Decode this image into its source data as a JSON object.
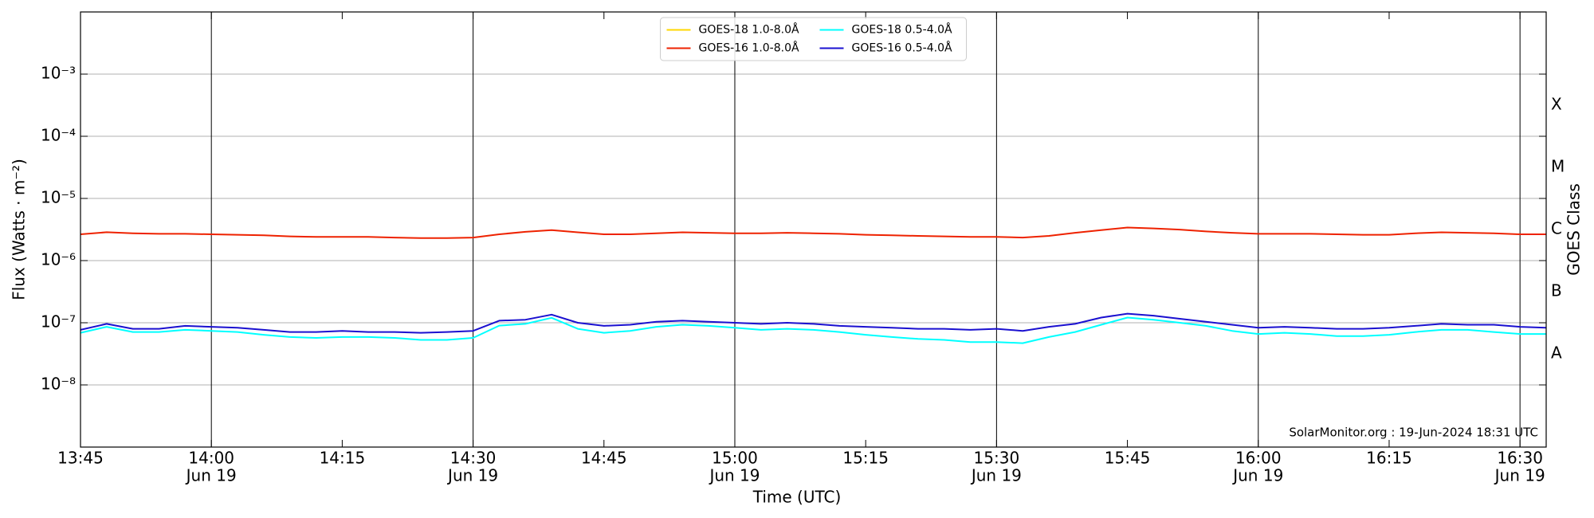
{
  "chart_data": {
    "type": "line",
    "xlabel": "Time (UTC)",
    "ylabel": "Flux (Watts · m⁻²)",
    "y2label": "GOES Class",
    "annotation": "SolarMonitor.org : 19-Jun-2024 18:31 UTC",
    "log_y": true,
    "grid": true,
    "legend": "upper center",
    "xlim": [
      "Jun 19 13:45",
      "Jun 19 16:33"
    ],
    "ylim": [
      1e-09,
      0.01
    ],
    "y2lim": [
      1e-09,
      0.01
    ],
    "xticks": [
      {
        "value": "Jun 19 13:45",
        "label": "13:45"
      },
      {
        "value": "Jun 19 14:00",
        "label": "14:00",
        "date": "Jun 19"
      },
      {
        "value": "Jun 19 14:15",
        "label": "14:15"
      },
      {
        "value": "Jun 19 14:30",
        "label": "14:30",
        "date": "Jun 19"
      },
      {
        "value": "Jun 19 14:45",
        "label": "14:45"
      },
      {
        "value": "Jun 19 15:00",
        "label": "15:00",
        "date": "Jun 19"
      },
      {
        "value": "Jun 19 15:15",
        "label": "15:15"
      },
      {
        "value": "Jun 19 15:30",
        "label": "15:30",
        "date": "Jun 19"
      },
      {
        "value": "Jun 19 15:45",
        "label": "15:45"
      },
      {
        "value": "Jun 19 16:00",
        "label": "16:00",
        "date": "Jun 19"
      },
      {
        "value": "Jun 19 16:15",
        "label": "16:15"
      },
      {
        "value": "Jun 19 16:30",
        "label": "16:30",
        "date": "Jun 19"
      }
    ],
    "yticks": [
      {
        "value": 1e-08,
        "label": "10⁻⁸"
      },
      {
        "value": 1e-07,
        "label": "10⁻⁷"
      },
      {
        "value": 1e-06,
        "label": "10⁻⁶"
      },
      {
        "value": 1e-05,
        "label": "10⁻⁵"
      },
      {
        "value": 0.0001,
        "label": "10⁻⁴"
      },
      {
        "value": 0.001,
        "label": "10⁻³"
      }
    ],
    "y2ticks": [
      {
        "value": 3.16e-08,
        "label": "A"
      },
      {
        "value": 3.16e-07,
        "label": "B"
      },
      {
        "value": 3.16e-06,
        "label": "C"
      },
      {
        "value": 3.16e-05,
        "label": "M"
      },
      {
        "value": 0.000316,
        "label": "X"
      }
    ],
    "x": [
      "Jun 19 13:45",
      "Jun 19 13:48",
      "Jun 19 13:51",
      "Jun 19 13:54",
      "Jun 19 13:57",
      "Jun 19 14:00",
      "Jun 19 14:03",
      "Jun 19 14:06",
      "Jun 19 14:09",
      "Jun 19 14:12",
      "Jun 19 14:15",
      "Jun 19 14:18",
      "Jun 19 14:21",
      "Jun 19 14:24",
      "Jun 19 14:27",
      "Jun 19 14:30",
      "Jun 19 14:33",
      "Jun 19 14:36",
      "Jun 19 14:39",
      "Jun 19 14:42",
      "Jun 19 14:45",
      "Jun 19 14:48",
      "Jun 19 14:51",
      "Jun 19 14:54",
      "Jun 19 14:57",
      "Jun 19 15:00",
      "Jun 19 15:03",
      "Jun 19 15:06",
      "Jun 19 15:09",
      "Jun 19 15:12",
      "Jun 19 15:15",
      "Jun 19 15:18",
      "Jun 19 15:21",
      "Jun 19 15:24",
      "Jun 19 15:27",
      "Jun 19 15:30",
      "Jun 19 15:33",
      "Jun 19 15:36",
      "Jun 19 15:39",
      "Jun 19 15:42",
      "Jun 19 15:45",
      "Jun 19 15:48",
      "Jun 19 15:51",
      "Jun 19 15:54",
      "Jun 19 15:57",
      "Jun 19 16:00",
      "Jun 19 16:03",
      "Jun 19 16:06",
      "Jun 19 16:09",
      "Jun 19 16:12",
      "Jun 19 16:15",
      "Jun 19 16:18",
      "Jun 19 16:21",
      "Jun 19 16:24",
      "Jun 19 16:27",
      "Jun 19 16:30",
      "Jun 19 16:33"
    ],
    "series": [
      {
        "name": "GOES-18 1.0-8.0Å",
        "color": "#ffd700",
        "values": [
          null,
          null,
          null,
          null,
          null,
          null,
          null,
          null,
          null,
          null,
          null,
          null,
          null,
          null,
          null,
          null,
          null,
          null,
          null,
          null,
          null,
          null,
          null,
          null,
          null,
          null,
          null,
          null,
          null,
          null,
          null,
          null,
          null,
          null,
          null,
          null,
          null,
          null,
          null,
          null,
          null,
          null,
          null,
          null,
          null,
          null,
          null,
          null,
          null,
          null,
          null,
          null,
          null,
          null,
          null,
          null,
          null
        ]
      },
      {
        "name": "GOES-16 1.0-8.0Å",
        "color": "#ee2200",
        "values": [
          2.65e-06,
          2.86e-06,
          2.75e-06,
          2.7e-06,
          2.7e-06,
          2.65e-06,
          2.6e-06,
          2.55e-06,
          2.45e-06,
          2.4e-06,
          2.4e-06,
          2.4e-06,
          2.35e-06,
          2.3e-06,
          2.3e-06,
          2.35e-06,
          2.65e-06,
          2.9e-06,
          3.1e-06,
          2.85e-06,
          2.65e-06,
          2.65e-06,
          2.75e-06,
          2.85e-06,
          2.8e-06,
          2.75e-06,
          2.75e-06,
          2.8e-06,
          2.75e-06,
          2.7e-06,
          2.6e-06,
          2.55e-06,
          2.5e-06,
          2.45e-06,
          2.4e-06,
          2.4e-06,
          2.35e-06,
          2.5e-06,
          2.8e-06,
          3.1e-06,
          3.4e-06,
          3.3e-06,
          3.15e-06,
          2.95e-06,
          2.8e-06,
          2.7e-06,
          2.7e-06,
          2.7e-06,
          2.65e-06,
          2.6e-06,
          2.6e-06,
          2.75e-06,
          2.85e-06,
          2.8e-06,
          2.75e-06,
          2.65e-06,
          2.65e-06
        ]
      },
      {
        "name": "GOES-18 0.5-4.0Å",
        "color": "#00ffff",
        "values": [
          6.9e-08,
          8.6e-08,
          7.1e-08,
          7.1e-08,
          7.7e-08,
          7.4e-08,
          7.1e-08,
          6.4e-08,
          5.9e-08,
          5.7e-08,
          5.9e-08,
          5.9e-08,
          5.7e-08,
          5.3e-08,
          5.3e-08,
          5.7e-08,
          9e-08,
          9.6e-08,
          1.2e-07,
          8e-08,
          6.9e-08,
          7.4e-08,
          8.6e-08,
          9.3e-08,
          8.9e-08,
          8.3e-08,
          7.7e-08,
          8e-08,
          7.7e-08,
          7.1e-08,
          6.4e-08,
          5.9e-08,
          5.5e-08,
          5.3e-08,
          4.9e-08,
          4.9e-08,
          4.7e-08,
          5.9e-08,
          7.1e-08,
          9.3e-08,
          1.21e-07,
          1.12e-07,
          1e-07,
          8.9e-08,
          7.4e-08,
          6.6e-08,
          6.9e-08,
          6.6e-08,
          6.1e-08,
          6.1e-08,
          6.4e-08,
          7.1e-08,
          7.7e-08,
          7.7e-08,
          7.1e-08,
          6.6e-08,
          6.6e-08
        ]
      },
      {
        "name": "GOES-16 0.5-4.0Å",
        "color": "#1a10d0",
        "values": [
          7.7e-08,
          9.6e-08,
          8e-08,
          8e-08,
          8.9e-08,
          8.6e-08,
          8.3e-08,
          7.7e-08,
          7.1e-08,
          7.1e-08,
          7.4e-08,
          7.1e-08,
          7.1e-08,
          6.9e-08,
          7.1e-08,
          7.4e-08,
          1.08e-07,
          1.12e-07,
          1.35e-07,
          1e-07,
          8.9e-08,
          9.3e-08,
          1.04e-07,
          1.08e-07,
          1.04e-07,
          1e-07,
          9.6e-08,
          1e-07,
          9.6e-08,
          8.9e-08,
          8.6e-08,
          8.3e-08,
          8e-08,
          8e-08,
          7.7e-08,
          8e-08,
          7.4e-08,
          8.6e-08,
          9.6e-08,
          1.21e-07,
          1.4e-07,
          1.3e-07,
          1.16e-07,
          1.04e-07,
          9.3e-08,
          8.3e-08,
          8.6e-08,
          8.3e-08,
          8e-08,
          8e-08,
          8.3e-08,
          8.9e-08,
          9.6e-08,
          9.3e-08,
          9.3e-08,
          8.6e-08,
          8.3e-08
        ]
      }
    ]
  }
}
